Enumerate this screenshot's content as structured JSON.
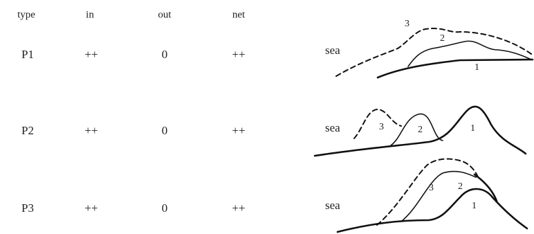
{
  "table": {
    "header": [
      "type",
      "in",
      "out",
      "net"
    ],
    "rows": [
      [
        "P1",
        "++",
        "0",
        "++"
      ],
      [
        "P2",
        "++",
        "0",
        "++"
      ],
      [
        "P3",
        "++",
        "0",
        "++"
      ]
    ]
  },
  "diagrams": [
    {
      "sea": "sea",
      "labels": [
        "3",
        "2",
        "1"
      ]
    },
    {
      "sea": "sea",
      "labels": [
        "3",
        "2",
        "1"
      ]
    },
    {
      "sea": "sea",
      "labels": [
        "3",
        "2",
        "1"
      ]
    }
  ]
}
